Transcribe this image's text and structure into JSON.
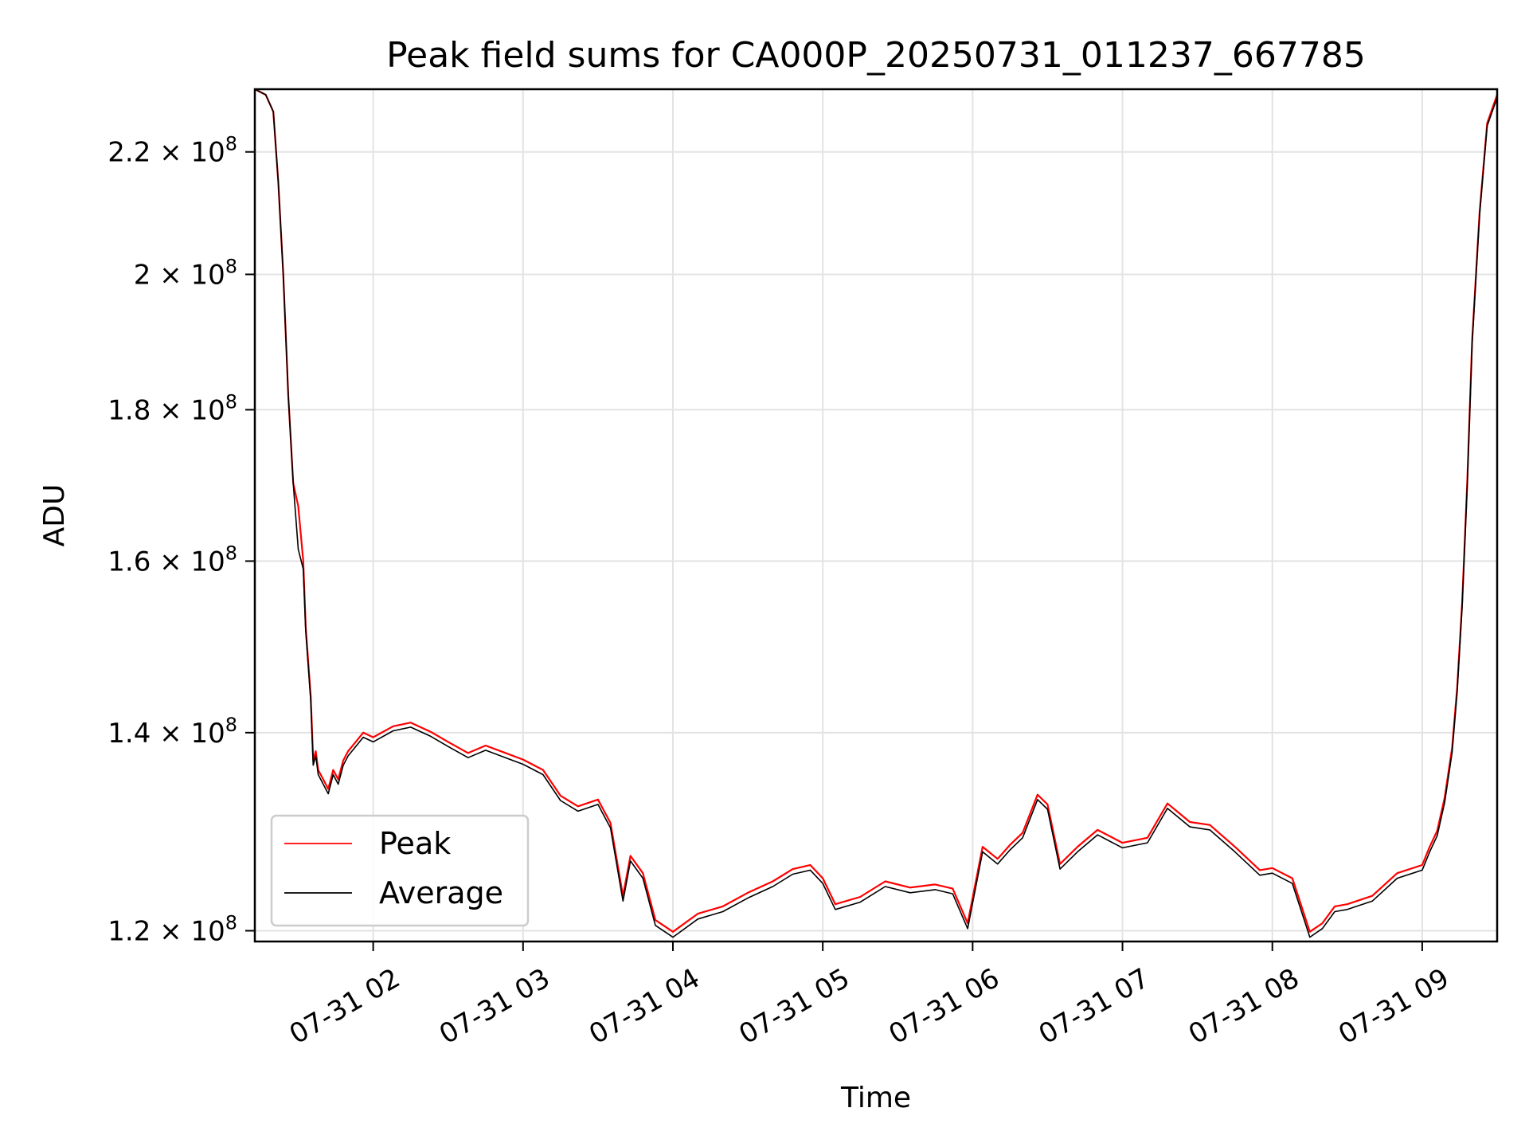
{
  "chart_data": {
    "type": "line",
    "title": "Peak field sums for CA000P_20250731_011237_667785",
    "xlabel": "Time",
    "ylabel": "ADU",
    "y_scale": "log",
    "xlim": [
      "2025-07-31T01:12:37",
      "2025-07-31T09:30:00"
    ],
    "ylim": [
      119000000,
      231000000
    ],
    "grid": true,
    "legend_position": "lower-left",
    "x_ticks": [
      {
        "value": "2025-07-31T02:00",
        "label": "07-31 02"
      },
      {
        "value": "2025-07-31T03:00",
        "label": "07-31 03"
      },
      {
        "value": "2025-07-31T04:00",
        "label": "07-31 04"
      },
      {
        "value": "2025-07-31T05:00",
        "label": "07-31 05"
      },
      {
        "value": "2025-07-31T06:00",
        "label": "07-31 06"
      },
      {
        "value": "2025-07-31T07:00",
        "label": "07-31 07"
      },
      {
        "value": "2025-07-31T08:00",
        "label": "07-31 08"
      },
      {
        "value": "2025-07-31T09:00",
        "label": "07-31 09"
      }
    ],
    "y_ticks": [
      {
        "value": 120000000,
        "mantissa": "1.2",
        "exponent": "8"
      },
      {
        "value": 140000000,
        "mantissa": "1.4",
        "exponent": "8"
      },
      {
        "value": 160000000,
        "mantissa": "1.6",
        "exponent": "8"
      },
      {
        "value": 180000000,
        "mantissa": "1.8",
        "exponent": "8"
      },
      {
        "value": 200000000,
        "mantissa": "2",
        "exponent": "8"
      },
      {
        "value": 220000000,
        "mantissa": "2.2",
        "exponent": "8"
      }
    ],
    "x": [
      "2025-07-31T01:12:37",
      "2025-07-31T01:17",
      "2025-07-31T01:20",
      "2025-07-31T01:22",
      "2025-07-31T01:24",
      "2025-07-31T01:26",
      "2025-07-31T01:28",
      "2025-07-31T01:30",
      "2025-07-31T01:32",
      "2025-07-31T01:33",
      "2025-07-31T01:35",
      "2025-07-31T01:36",
      "2025-07-31T01:37",
      "2025-07-31T01:38",
      "2025-07-31T01:40",
      "2025-07-31T01:42",
      "2025-07-31T01:44",
      "2025-07-31T01:46",
      "2025-07-31T01:48",
      "2025-07-31T01:50",
      "2025-07-31T01:53",
      "2025-07-31T01:56",
      "2025-07-31T02:00",
      "2025-07-31T02:08",
      "2025-07-31T02:15",
      "2025-07-31T02:23",
      "2025-07-31T02:30",
      "2025-07-31T02:38",
      "2025-07-31T02:45",
      "2025-07-31T02:52",
      "2025-07-31T03:00",
      "2025-07-31T03:08",
      "2025-07-31T03:15",
      "2025-07-31T03:22",
      "2025-07-31T03:30",
      "2025-07-31T03:35",
      "2025-07-31T03:40",
      "2025-07-31T03:43",
      "2025-07-31T03:48",
      "2025-07-31T03:53",
      "2025-07-31T04:00",
      "2025-07-31T04:10",
      "2025-07-31T04:20",
      "2025-07-31T04:30",
      "2025-07-31T04:40",
      "2025-07-31T04:48",
      "2025-07-31T04:55",
      "2025-07-31T05:00",
      "2025-07-31T05:05",
      "2025-07-31T05:15",
      "2025-07-31T05:25",
      "2025-07-31T05:35",
      "2025-07-31T05:45",
      "2025-07-31T05:52",
      "2025-07-31T05:58",
      "2025-07-31T06:04",
      "2025-07-31T06:10",
      "2025-07-31T06:15",
      "2025-07-31T06:20",
      "2025-07-31T06:26",
      "2025-07-31T06:30",
      "2025-07-31T06:35",
      "2025-07-31T06:42",
      "2025-07-31T06:50",
      "2025-07-31T07:00",
      "2025-07-31T07:10",
      "2025-07-31T07:18",
      "2025-07-31T07:27",
      "2025-07-31T07:35",
      "2025-07-31T07:45",
      "2025-07-31T07:55",
      "2025-07-31T08:00",
      "2025-07-31T08:08",
      "2025-07-31T08:15",
      "2025-07-31T08:20",
      "2025-07-31T08:25",
      "2025-07-31T08:30",
      "2025-07-31T08:40",
      "2025-07-31T08:50",
      "2025-07-31T09:00",
      "2025-07-31T09:03",
      "2025-07-31T09:06",
      "2025-07-31T09:09",
      "2025-07-31T09:12",
      "2025-07-31T09:14",
      "2025-07-31T09:16",
      "2025-07-31T09:18",
      "2025-07-31T09:20",
      "2025-07-31T09:23",
      "2025-07-31T09:26",
      "2025-07-31T09:30"
    ],
    "series": [
      {
        "name": "Peak",
        "color": "#ff0000",
        "values": [
          231000000,
          230000000,
          227000000,
          215000000,
          200000000,
          182000000,
          170000000,
          167000000,
          160000000,
          152000000,
          144000000,
          137000000,
          138000000,
          136000000,
          135000000,
          134000000,
          136000000,
          135000000,
          137000000,
          138000000,
          139000000,
          140000000,
          139500000,
          140700000,
          141100000,
          140100000,
          139000000,
          137800000,
          138600000,
          137900000,
          137100000,
          136000000,
          133300000,
          132200000,
          132900000,
          130500000,
          123300000,
          127200000,
          125500000,
          121000000,
          119900000,
          121600000,
          122300000,
          123600000,
          124700000,
          125900000,
          126300000,
          125000000,
          122500000,
          123200000,
          124700000,
          124100000,
          124400000,
          124000000,
          120700000,
          128100000,
          126900000,
          128300000,
          129500000,
          133400000,
          132400000,
          126400000,
          128100000,
          129800000,
          128500000,
          129000000,
          132500000,
          130600000,
          130300000,
          128100000,
          125800000,
          126000000,
          125000000,
          119900000,
          120700000,
          122300000,
          122500000,
          123300000,
          125500000,
          126300000,
          128100000,
          129700000,
          133100000,
          138400000,
          145000000,
          155000000,
          170000000,
          190000000,
          210000000,
          225000000,
          230000000
        ]
      },
      {
        "name": "Average",
        "color": "#000000",
        "values": [
          231000000,
          230000000,
          227000000,
          215000000,
          200000000,
          182000000,
          170000000,
          161500000,
          159000000,
          151500000,
          143500000,
          136500000,
          137500000,
          135500000,
          134500000,
          133500000,
          135500000,
          134500000,
          136500000,
          137500000,
          138500000,
          139500000,
          139000000,
          140200000,
          140600000,
          139600000,
          138500000,
          137300000,
          138100000,
          137400000,
          136600000,
          135500000,
          132800000,
          131700000,
          132400000,
          130000000,
          122800000,
          126700000,
          125000000,
          120500000,
          119400000,
          121100000,
          121800000,
          123100000,
          124200000,
          125400000,
          125800000,
          124500000,
          122000000,
          122700000,
          124200000,
          123600000,
          123900000,
          123500000,
          120200000,
          127600000,
          126400000,
          127800000,
          129000000,
          132900000,
          131900000,
          125900000,
          127600000,
          129300000,
          128000000,
          128500000,
          132000000,
          130100000,
          129800000,
          127600000,
          125300000,
          125500000,
          124500000,
          119400000,
          120200000,
          121800000,
          122000000,
          122800000,
          125000000,
          125800000,
          127600000,
          129200000,
          132600000,
          137900000,
          144500000,
          154500000,
          169500000,
          189500000,
          209500000,
          224500000,
          229500000
        ]
      }
    ]
  }
}
